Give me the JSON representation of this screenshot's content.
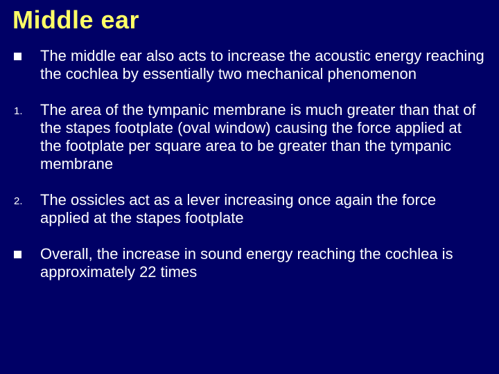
{
  "slide": {
    "title": "Middle ear",
    "background_color": "#000066",
    "title_color": "#ffff66",
    "text_color": "#ffffff",
    "title_fontsize": 36,
    "body_fontsize": 22,
    "items": [
      {
        "marker_type": "square",
        "marker": "",
        "text": "The middle ear also acts to increase the acoustic energy reaching the cochlea by essentially two mechanical phenomenon"
      },
      {
        "marker_type": "number",
        "marker": "1.",
        "text": "The area of the tympanic membrane is much greater than that of the stapes footplate (oval window) causing the force applied at the footplate per square area to be greater than the tympanic membrane"
      },
      {
        "marker_type": "number",
        "marker": "2.",
        "text": "The ossicles act as a lever increasing once again the force applied at the stapes footplate"
      },
      {
        "marker_type": "square",
        "marker": "",
        "text": "Overall, the increase in sound energy reaching the cochlea is approximately 22 times"
      }
    ]
  }
}
